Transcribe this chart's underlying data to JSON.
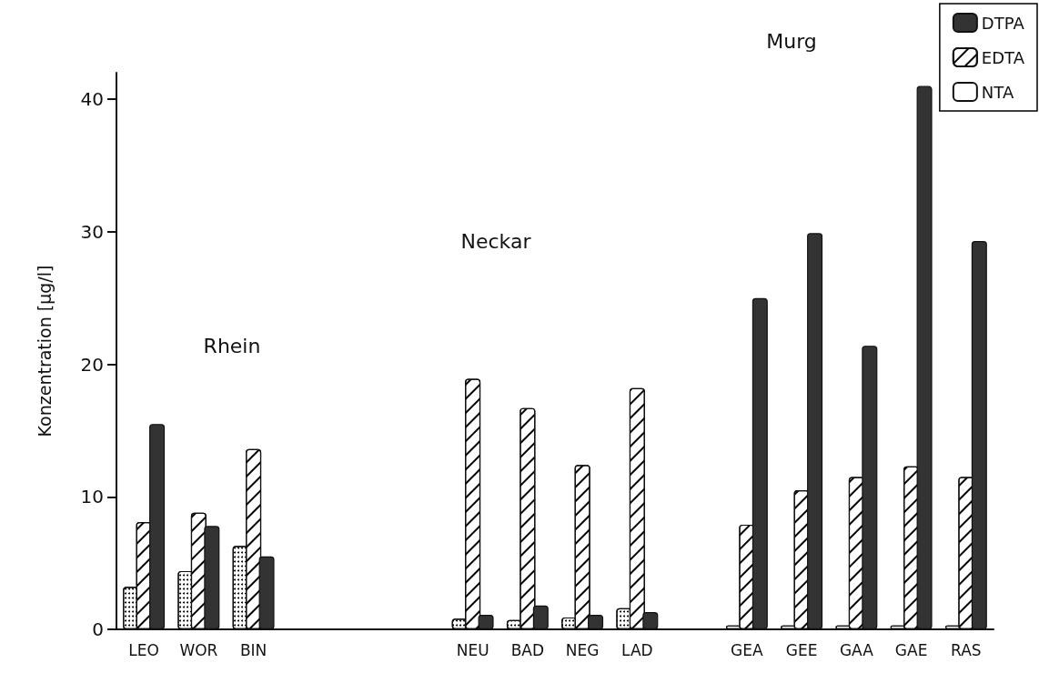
{
  "chart_data": {
    "type": "bar",
    "ylabel": "Konzentration [µg/l]",
    "categories": [
      "LEO",
      "WOR",
      "BIN",
      null,
      null,
      null,
      "NEU",
      "BAD",
      "NEG",
      "LAD",
      null,
      "GEA",
      "GEE",
      "GAA",
      "GAE",
      "RAS"
    ],
    "series": [
      {
        "name": "NTA",
        "color": "#ffffff",
        "values": [
          3.2,
          4.4,
          6.3,
          null,
          null,
          null,
          0.8,
          0.7,
          0.9,
          1.6,
          null,
          0.3,
          0.3,
          0.3,
          0.3,
          0.3
        ]
      },
      {
        "name": "EDTA",
        "color": "#ffffff",
        "values": [
          8.1,
          8.8,
          13.6,
          null,
          null,
          null,
          18.9,
          16.7,
          12.4,
          18.2,
          null,
          7.9,
          10.5,
          11.5,
          12.3,
          11.5
        ]
      },
      {
        "name": "DTPA",
        "color": "#333333",
        "values": [
          15.5,
          7.8,
          5.5,
          null,
          null,
          null,
          1.1,
          1.8,
          1.1,
          1.3,
          null,
          25.0,
          29.9,
          21.4,
          41.0,
          29.3
        ]
      }
    ],
    "ylim": [
      0,
      42
    ],
    "yticks": [
      0,
      10,
      20,
      30,
      40
    ],
    "grid": false,
    "legend": "top right",
    "annotations": [
      "Rhein",
      "Neckar",
      "Murg"
    ]
  }
}
